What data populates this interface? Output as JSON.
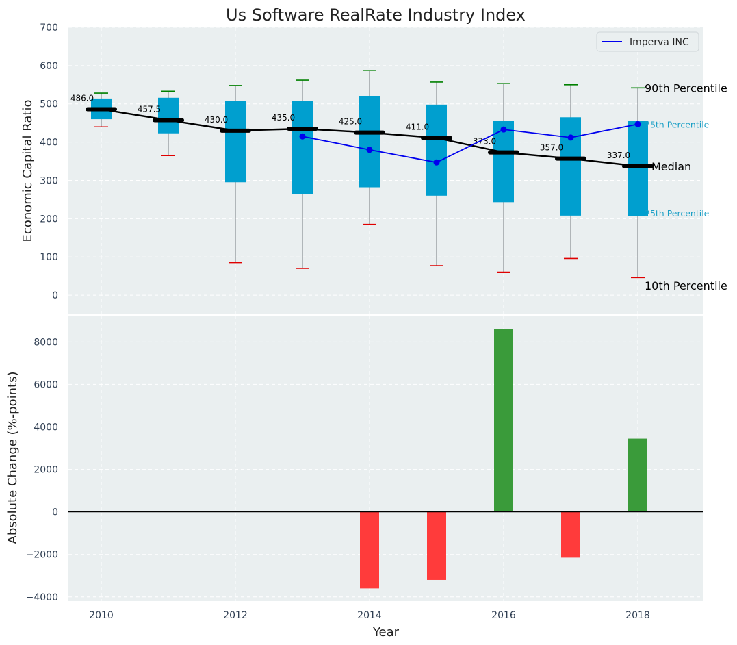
{
  "chart_data": [
    {
      "type": "box",
      "title": "Us Software RealRate Industry Index",
      "ylabel": "Economic Capital Ratio",
      "ylim": [
        -50,
        700
      ],
      "yticks": [
        0,
        100,
        200,
        300,
        400,
        500,
        600,
        700
      ],
      "years": [
        2010,
        2011,
        2012,
        2013,
        2014,
        2015,
        2016,
        2017,
        2018
      ],
      "p10": [
        440,
        365,
        85,
        70,
        185,
        77,
        60,
        96,
        46
      ],
      "p25": [
        460,
        423,
        295,
        265,
        282,
        260,
        243,
        208,
        207
      ],
      "median": [
        486.0,
        457.5,
        430.0,
        435.0,
        425.0,
        411.0,
        373.0,
        357.0,
        337.0
      ],
      "median_labels": [
        "486.0",
        "457.5",
        "430.0",
        "435.0",
        "425.0",
        "411.0",
        "373.0",
        "357.0",
        "337.0"
      ],
      "p75": [
        514,
        516,
        507,
        508,
        521,
        498,
        456,
        465,
        455
      ],
      "p90": [
        528,
        533,
        548,
        562,
        587,
        557,
        553,
        550,
        542
      ],
      "company_series": {
        "name": "Imperva INC",
        "years": [
          2013,
          2014,
          2015,
          2016,
          2017,
          2018
        ],
        "values": [
          415,
          380,
          347,
          433,
          412,
          447
        ]
      },
      "legend": {
        "label": "Imperva INC",
        "position": "top-right"
      },
      "annotations": {
        "p90": "90th Percentile",
        "p75": "75th Percentile",
        "median": "Median",
        "p25": "25th Percentile",
        "p10": "10th Percentile"
      }
    },
    {
      "type": "bar",
      "xlabel": "Year",
      "ylabel": "Absolute Change (%-points)",
      "ylim": [
        -4200,
        9300
      ],
      "yticks": [
        -4000,
        -2000,
        0,
        2000,
        4000,
        6000,
        8000
      ],
      "ytick_labels": [
        "−4000",
        "−2000",
        "0",
        "2000",
        "4000",
        "6000",
        "8000"
      ],
      "xticks": [
        2010,
        2012,
        2014,
        2016,
        2018
      ],
      "years": [
        2014,
        2015,
        2016,
        2017,
        2018
      ],
      "values": [
        -3600,
        -3200,
        8600,
        -2150,
        3450
      ]
    }
  ],
  "colors": {
    "panel_bg": "#eaeff0",
    "box_fill": "#009fcf",
    "median_line": "#000000",
    "p90_cap": "#008000",
    "p10_cap": "#e00000",
    "company_line": "#0000ee",
    "bar_positive": "#3a9b3a",
    "bar_negative": "#ff3b3b",
    "annot_quartile": "#1a9fc6"
  }
}
